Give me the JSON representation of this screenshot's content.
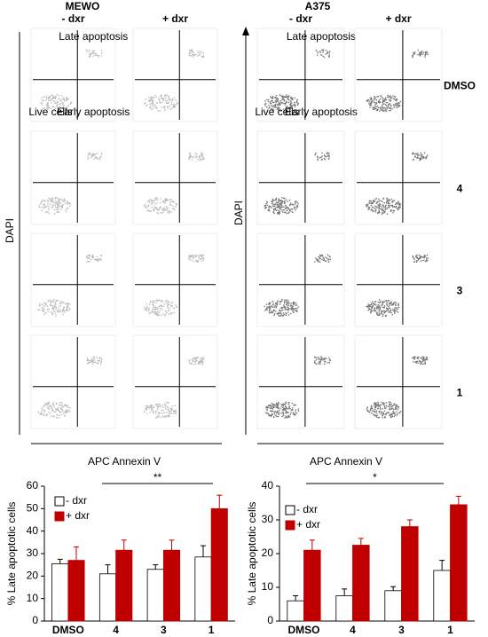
{
  "flow": {
    "groups": [
      {
        "title": "MEWO",
        "columns": [
          "- dxr",
          "+ dxr"
        ],
        "y_label": "DAPI",
        "x_label": "APC Annexin V",
        "quadrants": {
          "late": "Late apoptosis",
          "early": "Early apoptosis",
          "live": "Live cells"
        }
      },
      {
        "title": "A375",
        "columns": [
          "- dxr",
          "+ dxr"
        ],
        "y_label": "DAPI",
        "x_label": "APC Annexin V",
        "quadrants": {
          "late": "Late apoptosis",
          "early": "Early apoptosis",
          "live": "Live cells"
        }
      }
    ],
    "rows": [
      "DMSO",
      "4",
      "3",
      "1"
    ]
  },
  "chart_data": [
    {
      "type": "bar",
      "y_label": "% Late apoptotic cells",
      "categories": [
        "DMSO",
        "4",
        "3",
        "1"
      ],
      "series": [
        {
          "name": "- dxr",
          "color": "#ffffff",
          "values": [
            25.5,
            21,
            23,
            28.5
          ],
          "errors": [
            2,
            4,
            2,
            5
          ]
        },
        {
          "name": "+ dxr",
          "color": "#c00000",
          "values": [
            27,
            31.5,
            31.5,
            50
          ],
          "errors": [
            6,
            4.5,
            4.5,
            6
          ]
        }
      ],
      "ylim": [
        0,
        60
      ],
      "yticks": [
        0,
        10,
        20,
        30,
        40,
        50,
        60
      ],
      "significance": "**"
    },
    {
      "type": "bar",
      "y_label": "% Late apoptotic cells",
      "categories": [
        "DMSO",
        "4",
        "3",
        "1"
      ],
      "series": [
        {
          "name": "- dxr",
          "color": "#ffffff",
          "values": [
            6,
            7.5,
            9,
            15
          ],
          "errors": [
            1.5,
            2,
            1.2,
            3
          ]
        },
        {
          "name": "+ dxr",
          "color": "#c00000",
          "values": [
            21,
            22.5,
            28,
            34.5
          ],
          "errors": [
            3,
            2,
            2,
            2.5
          ]
        }
      ],
      "ylim": [
        0,
        40
      ],
      "yticks": [
        0,
        10,
        20,
        30,
        40
      ],
      "significance": "*"
    }
  ]
}
